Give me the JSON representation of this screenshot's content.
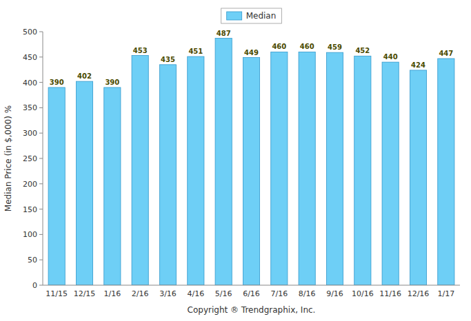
{
  "chart_data": {
    "type": "bar",
    "categories": [
      "11/15",
      "12/15",
      "1/16",
      "2/16",
      "3/16",
      "4/16",
      "5/16",
      "6/16",
      "7/16",
      "8/16",
      "9/16",
      "10/16",
      "11/16",
      "12/16",
      "1/17"
    ],
    "series": [
      {
        "name": "Median",
        "color": "#6ECFF6",
        "values": [
          390,
          402,
          390,
          453,
          435,
          451,
          487,
          449,
          460,
          460,
          459,
          452,
          440,
          424,
          447
        ]
      }
    ],
    "ylabel": "Median Price (in $,000) %",
    "xlabel": "Copyright ® Trendgraphix, Inc.",
    "ylim": [
      0,
      500
    ],
    "yticks": [
      0,
      50,
      100,
      150,
      200,
      250,
      300,
      350,
      400,
      450,
      500
    ],
    "grid": false,
    "legend": "top",
    "data_labels": true
  }
}
